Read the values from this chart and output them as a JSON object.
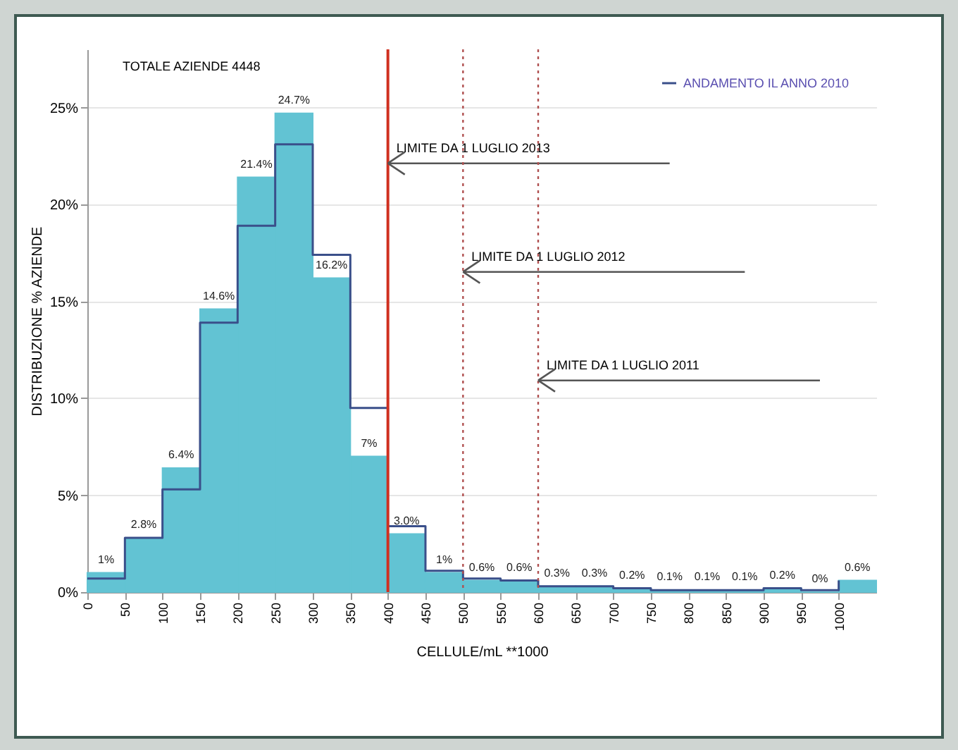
{
  "chart_data": {
    "type": "histogram",
    "xlabel": "CELLULE/mL **1000",
    "ylabel": "DISTRIBUZIONE % AZIENDE",
    "bins": [
      0,
      50,
      100,
      150,
      200,
      250,
      300,
      350,
      400,
      450,
      500,
      550,
      600,
      650,
      700,
      750,
      800,
      850,
      900,
      950,
      1000,
      1050
    ],
    "series": [
      {
        "color": "#62c3d3",
        "values": [
          1,
          2.8,
          6.4,
          14.6,
          21.4,
          24.7,
          16.2,
          7,
          3.0,
          1,
          0.6,
          0.6,
          0.3,
          0.3,
          0.2,
          0.1,
          0.1,
          0.1,
          0.2,
          0,
          0.6
        ],
        "value_labels": [
          "1%",
          "2.8%",
          "6.4%",
          "14.6%",
          "21.4%",
          "24.7%",
          "16.2%",
          "7%",
          "3.0%",
          "1%",
          "0.6%",
          "0.6%",
          "0.3%",
          "0.3%",
          "0.2%",
          "0.1%",
          "0.1%",
          "0.1%",
          "0.2%",
          "0%",
          "0.6%"
        ]
      },
      {
        "name": "ANDAMENTO IL ANNO 2010",
        "type": "step",
        "color": "#3a4f8a",
        "x": [
          0,
          50,
          100,
          150,
          200,
          250,
          300,
          350,
          400,
          450,
          500,
          550,
          600,
          650,
          700,
          750,
          800,
          850,
          900,
          950,
          1000
        ],
        "values": [
          0.7,
          2.8,
          5.3,
          13.9,
          18.9,
          23.1,
          17.4,
          9.5,
          3.4,
          1.1,
          0.7,
          0.6,
          0.3,
          0.3,
          0.2,
          0.1,
          0.1,
          0.1,
          0.2,
          0.1,
          0.6
        ]
      }
    ],
    "xlim": [
      0,
      1050
    ],
    "xticks": [
      0,
      50,
      100,
      150,
      200,
      250,
      300,
      350,
      400,
      450,
      500,
      550,
      600,
      650,
      700,
      750,
      800,
      850,
      900,
      950,
      1000
    ],
    "ylim": [
      0,
      28
    ],
    "yticks": [
      {
        "value": 0,
        "label": "0%"
      },
      {
        "value": 5,
        "label": "5%"
      },
      {
        "value": 10,
        "label": "10%"
      },
      {
        "value": 15,
        "label": "15%"
      },
      {
        "value": 20,
        "label": "20%"
      },
      {
        "value": 25,
        "label": "25%"
      }
    ],
    "grid": "y",
    "legend": "top right",
    "ref_lines": [
      {
        "axis": "x",
        "value": 400,
        "color": "#d03020",
        "line_style": "solid",
        "label": "LIMITE DA 1 LUGLIO 2013"
      },
      {
        "axis": "x",
        "value": 500,
        "color": "#b05050",
        "line_style": "dotted",
        "label": "LIMITE DA 1 LUGLIO 2012"
      },
      {
        "axis": "x",
        "value": 600,
        "color": "#b05050",
        "line_style": "dotted",
        "label": "LIMITE DA 1 LUGLIO 2011"
      }
    ],
    "annotations": [
      "TOTALE AZIENDE 4448"
    ]
  }
}
